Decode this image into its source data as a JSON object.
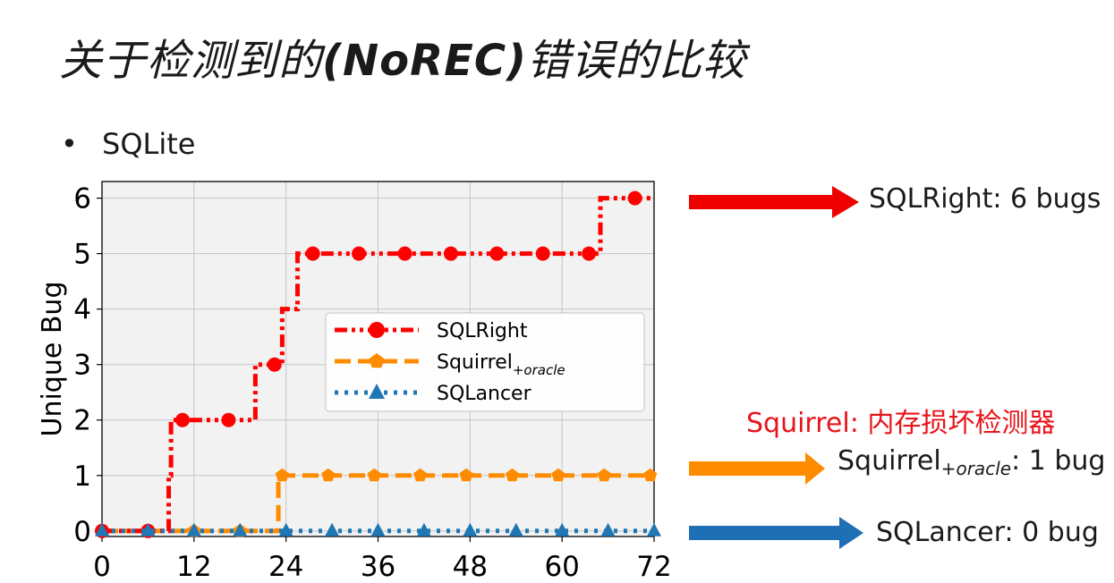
{
  "slide": {
    "title_prefix": "关于检测到的",
    "title_bold": "(NoREC)",
    "title_suffix": "错误的比较",
    "bullet": "SQLite"
  },
  "annotations": {
    "sqlright": "SQLRight: 6 bugs",
    "squirrel_note": "Squirrel: 内存损坏检测器",
    "squirrel_main": "Squirrel",
    "squirrel_sub": "+oracle",
    "squirrel_tail": ": 1 bug",
    "sqlancer": "SQLancer: 0 bug"
  },
  "colors": {
    "sqlright": "#ff0000",
    "squirrel": "#ff8c00",
    "sqlancer": "#1f77b4",
    "arrow_red": "#ee0000",
    "arrow_orange": "#ff8c00",
    "arrow_blue": "#1f6fb4",
    "note": "#e8141b",
    "plot_bg": "#f2f2f2"
  },
  "chart_data": {
    "type": "line",
    "title": "",
    "xlabel": "",
    "ylabel": "Unique Bug",
    "xlim": [
      0,
      72
    ],
    "ylim": [
      -0.1,
      6.3
    ],
    "xticks": [
      0,
      12,
      24,
      36,
      48,
      60,
      72
    ],
    "yticks": [
      0,
      1,
      2,
      3,
      4,
      5,
      6
    ],
    "grid": true,
    "legend_position": "center-right",
    "series": [
      {
        "name": "SQLRight",
        "legend_sub": "",
        "color_key": "sqlright",
        "marker": "circle",
        "linestyle": "dashdotdot",
        "step_points": [
          [
            0,
            0
          ],
          [
            8.7,
            0
          ],
          [
            8.7,
            1
          ],
          [
            9,
            1
          ],
          [
            9,
            2
          ],
          [
            20,
            2
          ],
          [
            20,
            3
          ],
          [
            23.5,
            3
          ],
          [
            23.5,
            4
          ],
          [
            25.5,
            4
          ],
          [
            25.5,
            5
          ],
          [
            65,
            5
          ],
          [
            65,
            6
          ],
          [
            72,
            6
          ]
        ],
        "markers": [
          [
            0,
            0
          ],
          [
            6,
            0
          ],
          [
            10.5,
            2
          ],
          [
            16.5,
            2
          ],
          [
            22.5,
            3
          ],
          [
            27.5,
            5
          ],
          [
            33.5,
            5
          ],
          [
            39.5,
            5
          ],
          [
            45.5,
            5
          ],
          [
            51.5,
            5
          ],
          [
            57.5,
            5
          ],
          [
            63.5,
            5
          ],
          [
            69.5,
            6
          ]
        ]
      },
      {
        "name": "Squirrel",
        "legend_sub": "+oracle",
        "color_key": "squirrel",
        "marker": "pentagon",
        "linestyle": "dashed",
        "step_points": [
          [
            0,
            0
          ],
          [
            23,
            0
          ],
          [
            23,
            1
          ],
          [
            72,
            1
          ]
        ],
        "markers": [
          [
            0,
            0
          ],
          [
            6,
            0
          ],
          [
            12,
            0
          ],
          [
            18,
            0
          ],
          [
            23.5,
            1
          ],
          [
            29.5,
            1
          ],
          [
            35.5,
            1
          ],
          [
            41.5,
            1
          ],
          [
            47.5,
            1
          ],
          [
            53.5,
            1
          ],
          [
            59.5,
            1
          ],
          [
            65.5,
            1
          ],
          [
            71.5,
            1
          ]
        ]
      },
      {
        "name": "SQLancer",
        "legend_sub": "",
        "color_key": "sqlancer",
        "marker": "triangle",
        "linestyle": "dotted",
        "step_points": [
          [
            0,
            0
          ],
          [
            72,
            0
          ]
        ],
        "markers": [
          [
            0,
            0
          ],
          [
            6,
            0
          ],
          [
            12,
            0
          ],
          [
            18,
            0
          ],
          [
            24,
            0
          ],
          [
            30,
            0
          ],
          [
            36,
            0
          ],
          [
            42,
            0
          ],
          [
            48,
            0
          ],
          [
            54,
            0
          ],
          [
            60,
            0
          ],
          [
            66,
            0
          ],
          [
            72,
            0
          ]
        ]
      }
    ]
  }
}
